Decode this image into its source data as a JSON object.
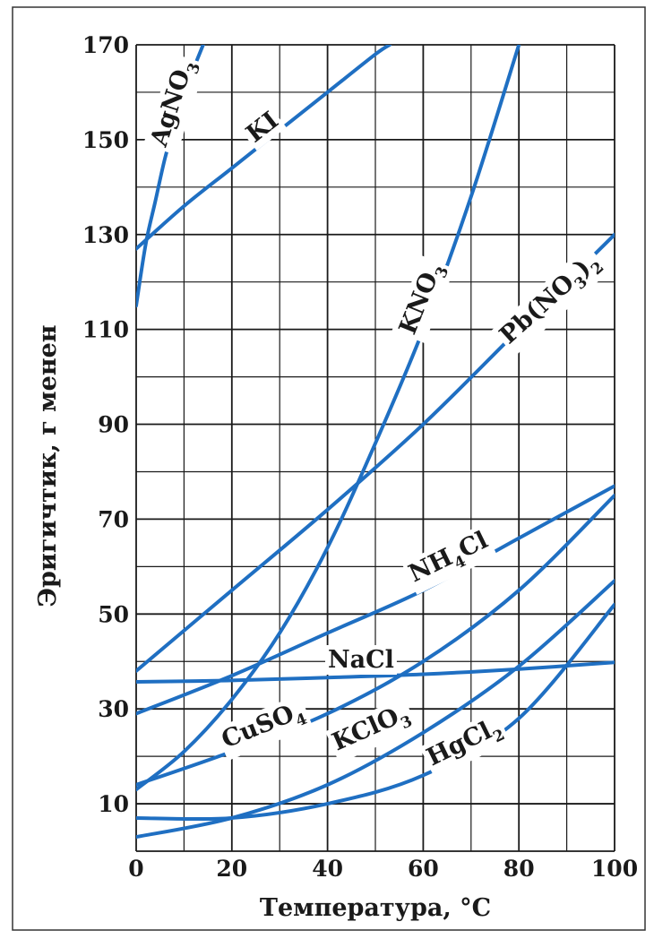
{
  "chart_data": {
    "type": "line",
    "title": "",
    "xlabel": "Температура, °С",
    "ylabel": "Эригичтик, г менен",
    "xlim": [
      0,
      100
    ],
    "ylim": [
      0,
      170
    ],
    "x_ticks": [
      0,
      20,
      40,
      60,
      80,
      100
    ],
    "y_ticks": [
      10,
      30,
      50,
      70,
      90,
      110,
      130,
      150,
      170
    ],
    "grid": true,
    "series": [
      {
        "name": "AgNO3",
        "label": {
          "base": "AgNO",
          "sub": "3"
        },
        "x": [
          0,
          2,
          4,
          6,
          8,
          10,
          12,
          14
        ],
        "y": [
          115,
          128,
          137,
          146,
          153,
          160,
          165,
          170
        ]
      },
      {
        "name": "KI",
        "label": {
          "base": "KI",
          "sub": ""
        },
        "x": [
          0,
          10,
          20,
          30,
          40,
          50,
          53
        ],
        "y": [
          127,
          136,
          144,
          152,
          160,
          168,
          170
        ]
      },
      {
        "name": "KNO3",
        "label": {
          "base": "KNO",
          "sub": "3"
        },
        "x": [
          0,
          10,
          20,
          30,
          40,
          50,
          60,
          70,
          80
        ],
        "y": [
          13,
          21,
          32,
          46,
          64,
          86,
          110,
          138,
          170
        ]
      },
      {
        "name": "Pb(NO3)2",
        "label": {
          "base": "Pb(NO",
          "sub": "3",
          "tail": ")",
          "sub2": "2"
        },
        "x": [
          0,
          20,
          40,
          60,
          80,
          100
        ],
        "y": [
          38,
          55,
          72,
          90,
          110,
          130
        ]
      },
      {
        "name": "NH4Cl",
        "label": {
          "base": "NH",
          "sub": "4",
          "tail": "Cl"
        },
        "x": [
          0,
          20,
          40,
          60,
          80,
          100
        ],
        "y": [
          29,
          37,
          46,
          55,
          66,
          77
        ]
      },
      {
        "name": "NaCl",
        "label": {
          "base": "NaCl",
          "sub": ""
        },
        "x": [
          0,
          20,
          40,
          60,
          80,
          100
        ],
        "y": [
          35.7,
          36,
          36.6,
          37.3,
          38.4,
          39.8
        ]
      },
      {
        "name": "CuSO4",
        "label": {
          "base": "CuSO",
          "sub": "4"
        },
        "x": [
          0,
          20,
          40,
          60,
          80,
          100
        ],
        "y": [
          14,
          21,
          29,
          40,
          55,
          75
        ]
      },
      {
        "name": "KClO3",
        "label": {
          "base": "KClO",
          "sub": "3"
        },
        "x": [
          0,
          20,
          40,
          60,
          80,
          100
        ],
        "y": [
          3,
          7,
          14,
          25,
          39,
          57
        ]
      },
      {
        "name": "HgCl2",
        "label": {
          "base": "HgCl",
          "sub": "2"
        },
        "x": [
          0,
          20,
          40,
          60,
          80,
          100
        ],
        "y": [
          7,
          7,
          10,
          16,
          28,
          52
        ]
      }
    ],
    "colors": {
      "series": "#1f6fc2",
      "grid": "#1a1a1a",
      "text": "#1a1a1a",
      "background": "#ffffff"
    }
  }
}
